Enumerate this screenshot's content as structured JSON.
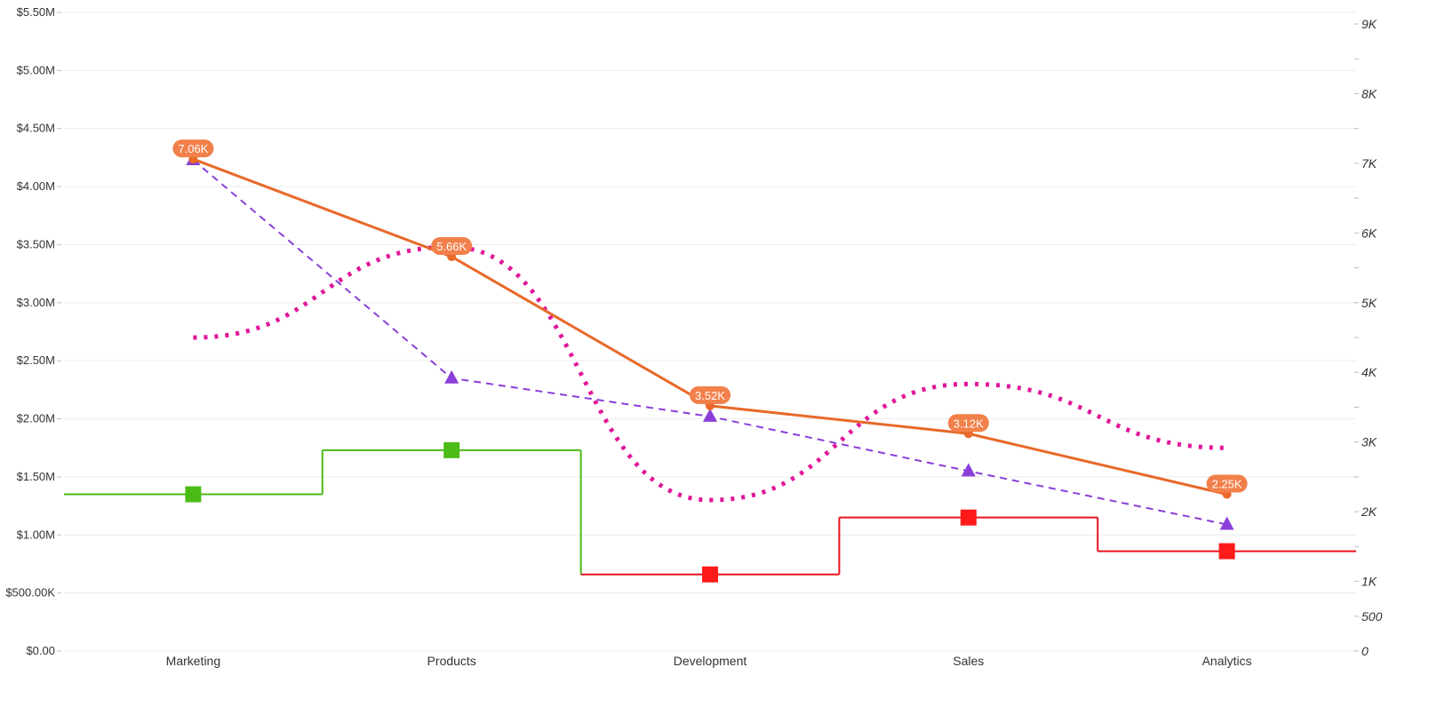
{
  "chart_data": {
    "type": "line",
    "categories": [
      "Marketing",
      "Products",
      "Development",
      "Sales",
      "Analytics"
    ],
    "left_axis": {
      "ylim": [
        0,
        5500000
      ],
      "ticks": [
        0,
        500000,
        1000000,
        1500000,
        2000000,
        2500000,
        3000000,
        3500000,
        4000000,
        4500000,
        5000000,
        5500000
      ],
      "tick_labels": [
        "$0.00",
        "$500.00K",
        "$1.00M",
        "$1.50M",
        "$2.00M",
        "$2.50M",
        "$3.00M",
        "$3.50M",
        "$4.00M",
        "$4.50M",
        "$5.00M",
        "$5.50M"
      ]
    },
    "right_axis": {
      "ylim": [
        0,
        9000
      ],
      "ticks": [
        0,
        500,
        1000,
        2000,
        3000,
        4000,
        5000,
        6000,
        7000,
        8000,
        9000
      ],
      "tick_labels": [
        "0",
        "500",
        "1K",
        "2K",
        "3K",
        "4K",
        "5K",
        "6K",
        "7K",
        "8K",
        "9K"
      ],
      "minor_ticks": [
        1500,
        2500,
        3500,
        4500,
        5500,
        6500,
        7500,
        8500
      ]
    },
    "grid": true,
    "series": [
      {
        "style": "solid-line-with-markers",
        "axis": "right",
        "color": "#E8692A",
        "values": [
          7060,
          5660,
          3520,
          3120,
          2250
        ],
        "data_labels": [
          "7.06K",
          "5.66K",
          "3.52K",
          "3.12K",
          "2.25K"
        ]
      },
      {
        "style": "dashed-line-triangle-markers",
        "axis": "left",
        "color": "#8A3FD9",
        "values": [
          4230000,
          2350000,
          2020000,
          1550000,
          1090000
        ]
      },
      {
        "style": "dotted-spline",
        "axis": "left",
        "color": "#E0169A",
        "values": [
          2700000,
          3480000,
          1300000,
          2300000,
          1750000
        ]
      },
      {
        "style": "step-line-square-markers",
        "axis": "left",
        "values": [
          1350000,
          1730000,
          660000,
          1150000,
          860000
        ],
        "point_colors": [
          "#4CBB17",
          "#4CBB17",
          "#FF1A1A",
          "#FF1A1A",
          "#FF1A1A"
        ],
        "segment_colors": [
          "#4CBB17",
          "#4CBB17",
          "#E8141E",
          "#E8141E",
          "#E8141E"
        ]
      }
    ]
  }
}
